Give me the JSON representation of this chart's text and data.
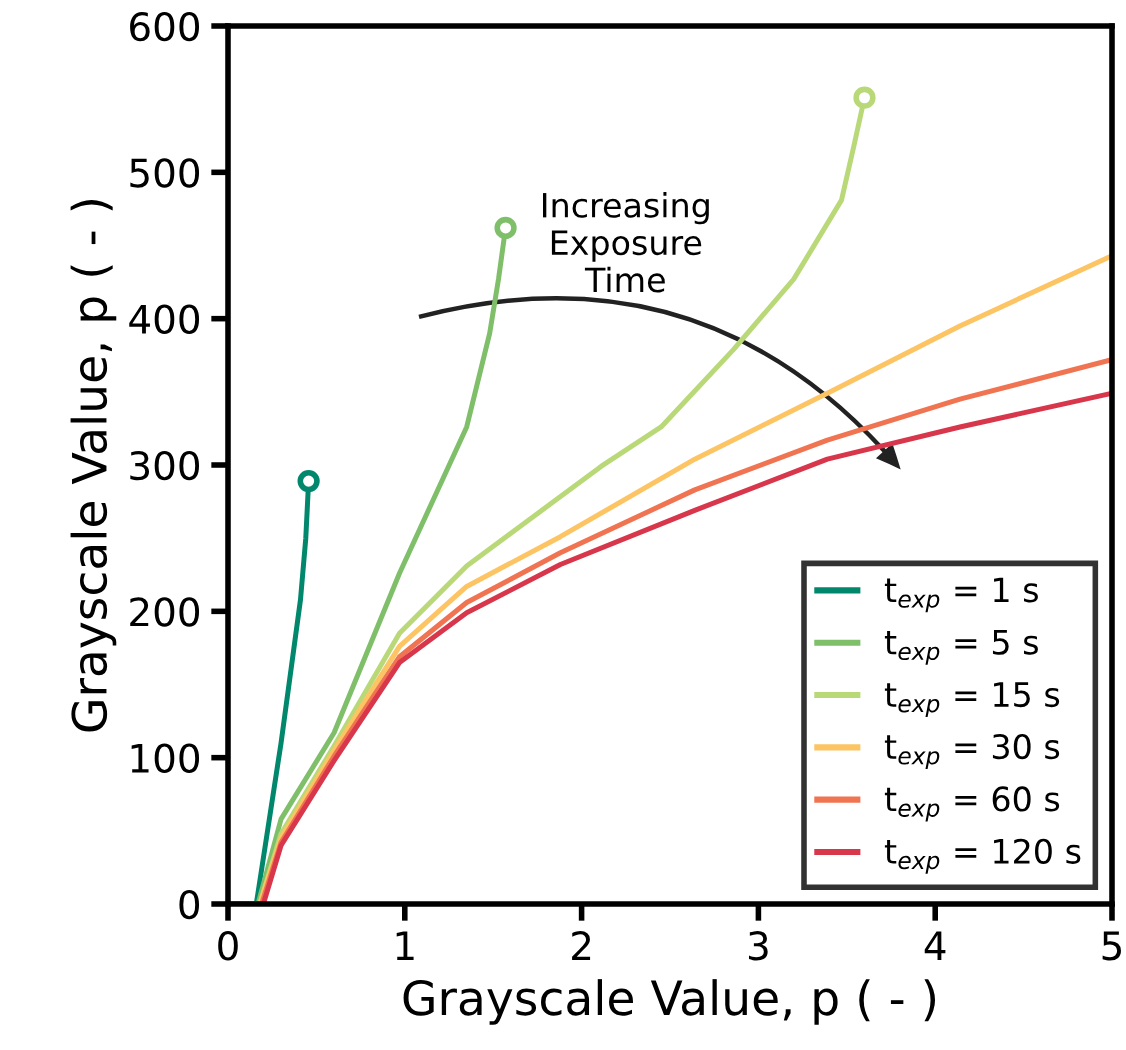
{
  "chart_data": {
    "type": "line",
    "xlabel": "Grayscale Value, p ( - )",
    "ylabel": "Grayscale Value, p ( - )",
    "xlim": [
      0,
      5
    ],
    "ylim": [
      0,
      600
    ],
    "xticks": [
      0,
      1,
      2,
      3,
      4,
      5
    ],
    "yticks": [
      0,
      100,
      200,
      300,
      400,
      500,
      600
    ],
    "grid": false,
    "legend": "bottom right",
    "line_style": "solid",
    "annotations": [
      "Increasing\nExposure\nTime"
    ],
    "series": [
      {
        "name": "t$_{exp}$ = 1 s",
        "color": "#00876c",
        "x": [
          0,
          0.16,
          0.3,
          0.41,
          0.44,
          0.456
        ],
        "values": [
          0,
          0,
          110,
          208,
          250,
          289
        ]
      },
      {
        "name": "t$_{exp}$ = 5 s",
        "color": "#7fbf6a",
        "x": [
          0,
          0.17,
          0.3,
          0.6,
          0.97,
          1.35,
          1.48,
          1.53,
          1.57
        ],
        "values": [
          0,
          0,
          58,
          117,
          226,
          326,
          390,
          427,
          462
        ]
      },
      {
        "name": "t$_{exp}$ = 15 s",
        "color": "#b9d978",
        "x": [
          0,
          0.18,
          0.3,
          0.6,
          0.97,
          1.35,
          1.73,
          2.11,
          2.45,
          2.86,
          3.2,
          3.47,
          3.54,
          3.6
        ],
        "values": [
          0,
          0,
          48,
          108,
          185,
          231,
          265,
          299,
          326,
          379,
          427,
          481,
          518,
          551
        ]
      },
      {
        "name": "t$_{exp}$ = 30 s",
        "color": "#fdc463",
        "x": [
          0,
          0.18,
          0.3,
          0.6,
          0.97,
          1.35,
          1.88,
          2.64,
          3.39,
          4.14,
          5
        ],
        "values": [
          0,
          0,
          45,
          105,
          176,
          217,
          251,
          304,
          349,
          395,
          443
        ]
      },
      {
        "name": "t$_{exp}$ = 60 s",
        "color": "#f07451",
        "x": [
          0,
          0.19,
          0.3,
          0.6,
          0.97,
          1.35,
          1.88,
          2.64,
          3.39,
          4.14,
          5
        ],
        "values": [
          0,
          0,
          42,
          101,
          169,
          206,
          240,
          283,
          317,
          345,
          372
        ]
      },
      {
        "name": "t$_{exp}$ = 120 s",
        "color": "#d8364b",
        "x": [
          0,
          0.2,
          0.3,
          0.6,
          0.97,
          1.35,
          1.88,
          2.64,
          3.39,
          4.14,
          5
        ],
        "values": [
          0,
          0,
          40,
          98,
          165,
          199,
          232,
          269,
          304,
          326,
          349
        ]
      },
      {
        "type": "scatter",
        "color": "#00876c",
        "marker": "circle",
        "x": [
          0.456
        ],
        "values": [
          289
        ]
      },
      {
        "type": "scatter",
        "color": "#7fbf6a",
        "marker": "circle",
        "x": [
          1.57
        ],
        "values": [
          462
        ]
      },
      {
        "type": "scatter",
        "color": "#b9d978",
        "marker": "circle",
        "x": [
          3.6
        ],
        "values": [
          551
        ]
      }
    ]
  }
}
